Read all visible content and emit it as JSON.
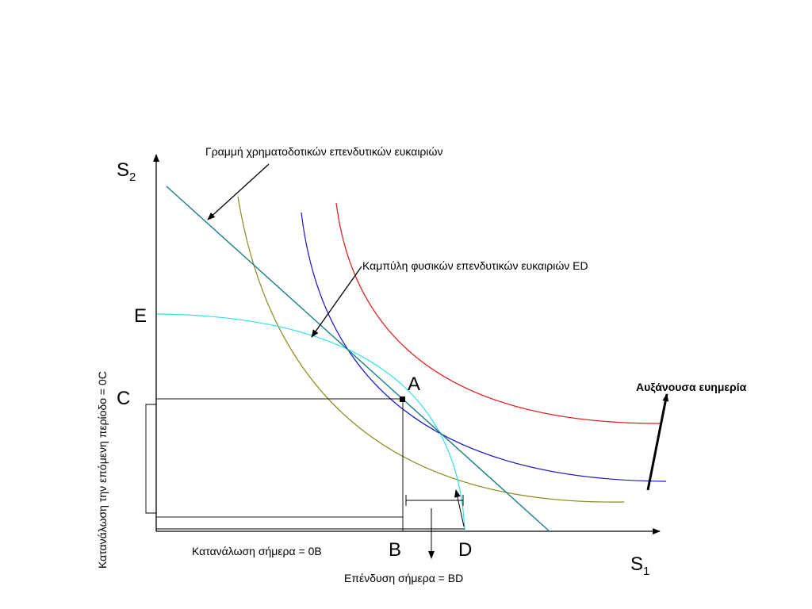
{
  "diagram": {
    "axis_y_label": "S",
    "axis_y_sub": "2",
    "axis_x_label": "S",
    "axis_x_sub": "1",
    "label_E": "E",
    "label_C": "C",
    "label_A": "A",
    "label_B": "B",
    "label_D": "D",
    "annotation_financial_line": "Γραμμή χρηματοδοτικών επενδυτικών ευκαιριών",
    "annotation_physical_curve": "Καμπύλη φυσικών επενδυτικών ευκαιριών ED",
    "annotation_welfare": "Αυξάνουσα ευημερία",
    "consumption_today": "Κατανάλωση σήμερα = 0B",
    "investment_today": "Επένδυση σήμερα = BD",
    "consumption_next": "Κατανάλωση την επόμενη περίοδο = 0C"
  },
  "colors": {
    "financial_line": "#1a7f86",
    "physical_curve": "#33e0e6",
    "indifference_low": "#8a8a1e",
    "indifference_mid": "#1616c8",
    "indifference_high": "#e01b1b",
    "axes": "#000000"
  }
}
